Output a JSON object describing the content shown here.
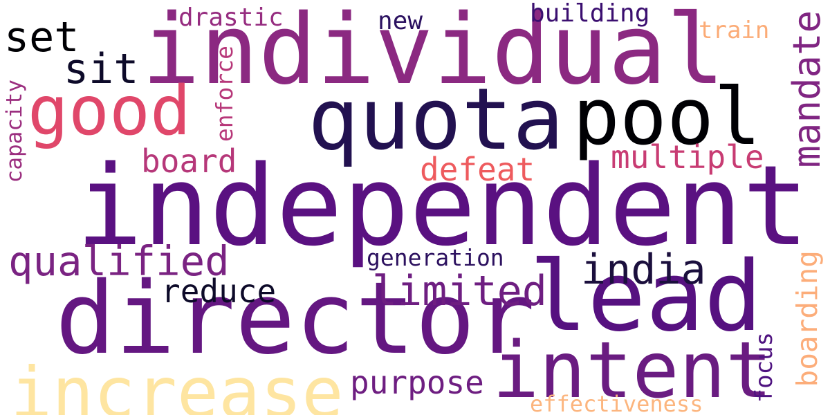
{
  "words": [
    {
      "id": "independent",
      "text": "independent",
      "color": "#5a1181"
    },
    {
      "id": "director",
      "text": "director",
      "color": "#641781"
    },
    {
      "id": "individual",
      "text": "individual",
      "color": "#8b2981"
    },
    {
      "id": "quota",
      "text": "quota",
      "color": "#221150"
    },
    {
      "id": "pool",
      "text": "pool",
      "color": "#000004"
    },
    {
      "id": "lead",
      "text": "lead",
      "color": "#561180"
    },
    {
      "id": "intent",
      "text": "intent",
      "color": "#6a1c81"
    },
    {
      "id": "increase",
      "text": "increase",
      "color": "#fee5a1"
    },
    {
      "id": "good",
      "text": "good",
      "color": "#e0476a"
    },
    {
      "id": "set",
      "text": "set",
      "color": "#000004"
    },
    {
      "id": "sit",
      "text": "sit",
      "color": "#0d0a29"
    },
    {
      "id": "qualified",
      "text": "qualified",
      "color": "#7a2382"
    },
    {
      "id": "india",
      "text": "india",
      "color": "#1b0f3d"
    },
    {
      "id": "limited",
      "text": "limited",
      "color": "#6e1e81"
    },
    {
      "id": "reduce",
      "text": "reduce",
      "color": "#0d0a29"
    },
    {
      "id": "purpose",
      "text": "purpose",
      "color": "#6e1e81"
    },
    {
      "id": "defeat",
      "text": "defeat",
      "color": "#ee5b5e"
    },
    {
      "id": "board",
      "text": "board",
      "color": "#b63779"
    },
    {
      "id": "multiple",
      "text": "multiple",
      "color": "#c83c73"
    },
    {
      "id": "mandate",
      "text": "mandate",
      "color": "#802582"
    },
    {
      "id": "drastic",
      "text": "drastic",
      "color": "#962d80"
    },
    {
      "id": "new",
      "text": "new",
      "color": "#2b1160"
    },
    {
      "id": "building",
      "text": "building",
      "color": "#3b0f70"
    },
    {
      "id": "train",
      "text": "train",
      "color": "#fbab76"
    },
    {
      "id": "enforce",
      "text": "enforce",
      "color": "#b73779"
    },
    {
      "id": "capacity",
      "text": "capacity",
      "color": "#9b2e7f"
    },
    {
      "id": "generation",
      "text": "generation",
      "color": "#2c115f"
    },
    {
      "id": "boarding",
      "text": "boarding",
      "color": "#fcad7a"
    },
    {
      "id": "focus",
      "text": "focus",
      "color": "#4f1380"
    },
    {
      "id": "effectiveness",
      "text": "effectiveness",
      "color": "#fcb57e"
    }
  ]
}
